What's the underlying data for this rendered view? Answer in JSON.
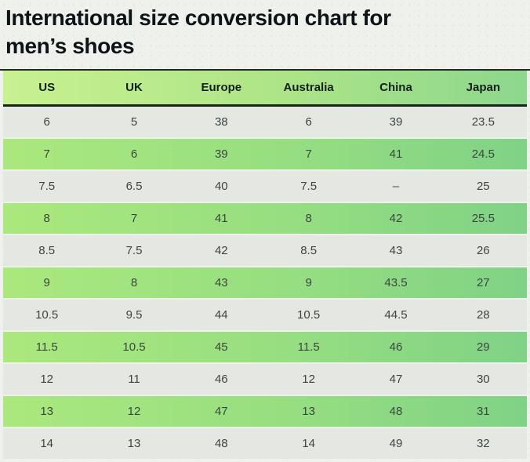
{
  "title": {
    "full": "International size conversion chart for men’s shoes",
    "line1": "International size conversion chart for",
    "line2": "men’s shoes"
  },
  "chart_data": {
    "type": "table",
    "title": "International size conversion chart for men’s shoes",
    "columns": [
      "US",
      "UK",
      "Europe",
      "Australia",
      "China",
      "Japan"
    ],
    "rows": [
      [
        "6",
        "5",
        "38",
        "6",
        "39",
        "23.5"
      ],
      [
        "7",
        "6",
        "39",
        "7",
        "41",
        "24.5"
      ],
      [
        "7.5",
        "6.5",
        "40",
        "7.5",
        "–",
        "25"
      ],
      [
        "8",
        "7",
        "41",
        "8",
        "42",
        "25.5"
      ],
      [
        "8.5",
        "7.5",
        "42",
        "8.5",
        "43",
        "26"
      ],
      [
        "9",
        "8",
        "43",
        "9",
        "43.5",
        "27"
      ],
      [
        "10.5",
        "9.5",
        "44",
        "10.5",
        "44.5",
        "28"
      ],
      [
        "11.5",
        "10.5",
        "45",
        "11.5",
        "46",
        "29"
      ],
      [
        "12",
        "11",
        "46",
        "12",
        "47",
        "30"
      ],
      [
        "13",
        "12",
        "47",
        "13",
        "48",
        "31"
      ],
      [
        "14",
        "13",
        "48",
        "14",
        "49",
        "32"
      ]
    ],
    "layout_hints": {
      "row_striping": "alternating gray and green starting with gray",
      "column_alignment": "center"
    }
  },
  "colors": {
    "page_background": "#eff2ec",
    "title_text": "#0d1418",
    "header_gradient_start": "#c8f190",
    "header_gradient_end": "#8dd78e",
    "header_text": "#13211a",
    "row_green_gradient_start": "#abe87d",
    "row_green_gradient_end": "#80d286",
    "row_gray": "#e5e7e3",
    "cell_text": "#3c4641",
    "dark_border": "#18241b"
  }
}
